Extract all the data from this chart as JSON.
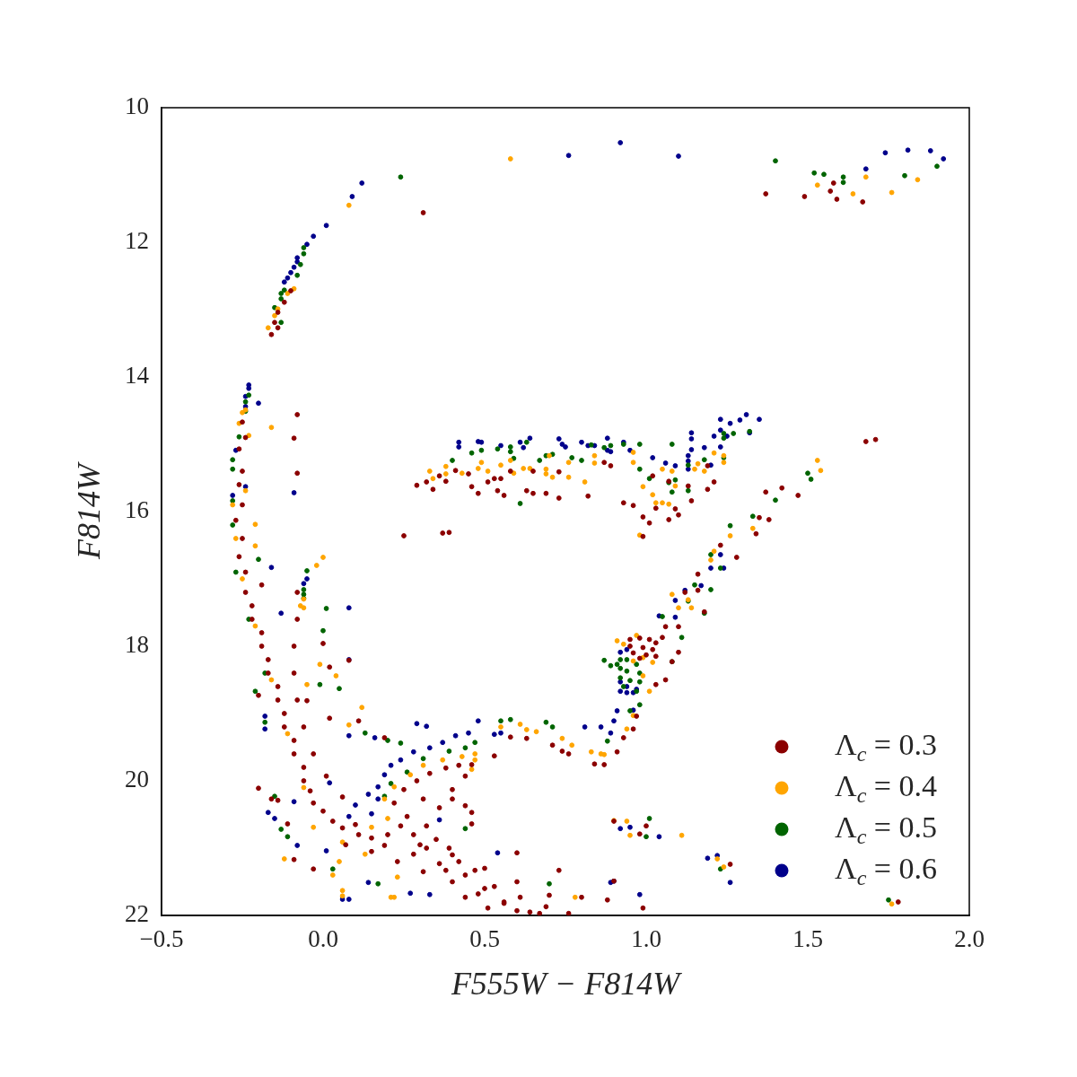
{
  "chart_data": {
    "type": "scatter",
    "xlabel": "F555W − F814W",
    "ylabel": "F814W",
    "xlim": [
      -0.5,
      2.0
    ],
    "ylim": [
      22,
      10
    ],
    "xticks": [
      {
        "value": -0.5,
        "label": "−0.5"
      },
      {
        "value": 0,
        "label": "0.0"
      },
      0.5,
      {
        "value": 1,
        "label": "1.0"
      },
      1.5,
      {
        "value": 2,
        "label": "2.0"
      }
    ],
    "yticks": [
      10,
      12,
      14,
      16,
      18,
      20,
      22
    ],
    "grid": false,
    "legend": "bottom right",
    "marker": "circle",
    "series": [
      {
        "name": "Λ$_{c}$ = 0.3",
        "color": "#8b0000",
        "x": [
          0.31,
          -0.1,
          -0.12,
          -0.14,
          -0.15,
          -0.14,
          -0.16,
          1.37,
          1.49,
          1.57,
          1.58,
          1.59,
          1.67,
          1.68,
          1.71,
          -0.08,
          -0.09,
          -0.08,
          0.29,
          0.32,
          0.34,
          0.36,
          0.38,
          0.41,
          0.45,
          0.46,
          0.48,
          0.51,
          0.53,
          0.55,
          0.54,
          0.56,
          0.58,
          0.63,
          0.65,
          0.65,
          0.69,
          0.73,
          0.73,
          0.87,
          0.89,
          0.82,
          0.93,
          0.96,
          1.02,
          1.07,
          1.13,
          1.19,
          1.21,
          1.19,
          1.37,
          1.42,
          1.47,
          1.14,
          1.09,
          1.03,
          0.25,
          0.37,
          0.39,
          1.16,
          1.23,
          1.28,
          1.34,
          1.38,
          1.35,
          0.99,
          1.01,
          1.07,
          1.1,
          0.99,
          1.06,
          1.1,
          1.12,
          1.16,
          1.18,
          1.05,
          1.1,
          1.08,
          0.95,
          0.98,
          1.01,
          1.03,
          0.95,
          0.99,
          1.02,
          0.96,
          1.0,
          1.03,
          0.98,
          1.03,
          1.06,
          0.97,
          0.96,
          0.93,
          0.91,
          0.87,
          0.84,
          0.76,
          0.9,
          1.0,
          0.98,
          1.26,
          1.78,
          0.8,
          0.9,
          0.99,
          0.88,
          -0.25,
          -0.26,
          -0.26,
          -0.27,
          -0.26,
          -0.24,
          -0.22,
          -0.19,
          -0.17,
          -0.14,
          -0.12,
          -0.09,
          -0.06,
          -0.03,
          0.03,
          0.11,
          0.19,
          0.28,
          0.36,
          0.44,
          0.53,
          0.61,
          0.69,
          0.76,
          -0.24,
          -0.25,
          -0.25,
          -0.25,
          -0.24,
          -0.22,
          -0.19,
          -0.17,
          -0.14,
          -0.12,
          -0.09,
          -0.06,
          -0.04,
          0.0,
          0.06,
          0.15,
          0.07,
          0.15,
          0.23,
          0.31,
          0.4,
          0.48,
          0.56,
          0.64,
          0.1,
          0.2,
          0.3,
          0.4,
          0.5,
          0.6,
          0.7,
          -0.08,
          -0.08,
          -0.09,
          -0.09,
          -0.08,
          -0.06,
          -0.03,
          0.01,
          0.06,
          0.22,
          0.25,
          0.29,
          0.33,
          0.38,
          0.42,
          0.46,
          0.44,
          0.4,
          0.36,
          0.32,
          0.28,
          0.31,
          0.26,
          0.24,
          0.35,
          0.39,
          0.32,
          0.42,
          0.47,
          0.38,
          0.5,
          0.56,
          0.44,
          0.6,
          0.67,
          0.51,
          -0.2,
          -0.16,
          -0.14,
          -0.11,
          -0.09,
          -0.03,
          0.11,
          0.19,
          0.4,
          0.46,
          0.46,
          -0.19,
          0.02,
          0.08,
          0.0,
          -0.2,
          -0.05,
          0.02,
          0.53,
          0.71,
          0.74,
          0.63,
          0.58,
          0.6,
          0.44,
          0.73
        ],
        "values": [
          11.56,
          12.72,
          12.89,
          13.04,
          13.19,
          13.27,
          13.37,
          11.28,
          11.32,
          11.24,
          11.12,
          11.36,
          11.4,
          14.96,
          14.93,
          14.56,
          14.91,
          15.43,
          15.61,
          15.56,
          15.67,
          15.47,
          15.55,
          15.39,
          15.44,
          15.63,
          15.73,
          15.56,
          15.51,
          15.51,
          15.69,
          15.76,
          15.4,
          15.69,
          15.4,
          15.73,
          15.73,
          15.41,
          15.8,
          15.27,
          15.32,
          15.77,
          15.87,
          15.91,
          15.47,
          15.55,
          15.62,
          15.67,
          15.56,
          15.32,
          15.71,
          15.65,
          15.76,
          15.84,
          15.96,
          15.95,
          16.36,
          16.32,
          16.31,
          16.93,
          16.5,
          16.68,
          16.33,
          16.12,
          16.09,
          16.08,
          16.17,
          16.12,
          16.05,
          16.37,
          17.71,
          17.71,
          17.2,
          17.17,
          17.49,
          17.87,
          18.09,
          18.23,
          17.9,
          17.88,
          17.9,
          17.95,
          18.0,
          18.02,
          18.05,
          18.1,
          18.13,
          18.15,
          18.18,
          18.57,
          18.5,
          19.04,
          19.23,
          19.36,
          19.57,
          19.76,
          19.75,
          19.6,
          20.6,
          20.67,
          20.79,
          21.24,
          21.8,
          21.73,
          21.49,
          21.89,
          21.77,
          14.67,
          15.07,
          15.6,
          16.13,
          16.67,
          17.2,
          17.6,
          18.0,
          18.4,
          18.8,
          19.2,
          19.6,
          20.0,
          20.33,
          20.6,
          20.8,
          20.96,
          21.09,
          21.23,
          21.4,
          21.57,
          21.73,
          21.87,
          21.97,
          14.9,
          15.4,
          15.9,
          16.4,
          16.9,
          17.4,
          17.8,
          18.2,
          18.6,
          19.0,
          19.4,
          19.8,
          20.15,
          20.45,
          20.7,
          20.85,
          20.95,
          21.05,
          21.2,
          21.35,
          21.5,
          21.68,
          21.82,
          21.95,
          20.65,
          20.8,
          20.95,
          21.1,
          21.3,
          21.5,
          21.7,
          17.2,
          17.6,
          18.0,
          18.4,
          18.8,
          19.2,
          19.6,
          19.93,
          20.24,
          20.33,
          20.13,
          20.0,
          19.89,
          19.81,
          19.77,
          19.76,
          19.93,
          20.13,
          20.4,
          20.67,
          20.8,
          20.27,
          20.53,
          20.67,
          20.87,
          21.0,
          21.0,
          21.2,
          21.33,
          21.33,
          21.6,
          21.8,
          21.73,
          21.93,
          21.97,
          21.89,
          20.11,
          20.27,
          20.29,
          20.64,
          21.17,
          21.31,
          19.11,
          19.36,
          20.27,
          20.47,
          20.64,
          17.09,
          18.31,
          18.21,
          17.96,
          18.73,
          18.81,
          19.07,
          19.63,
          19.47,
          19.56,
          19.37,
          19.35,
          21.07,
          20.37,
          21.33
        ]
      },
      {
        "name": "Λ$_{c}$ = 0.4",
        "color": "#ffa500",
        "x": [
          0.08,
          -0.09,
          -0.11,
          -0.14,
          -0.15,
          -0.17,
          0.58,
          1.53,
          1.68,
          1.64,
          1.76,
          1.84,
          -0.24,
          -0.26,
          -0.23,
          -0.16,
          -0.24,
          -0.25,
          0.33,
          0.34,
          0.38,
          0.38,
          0.43,
          0.48,
          0.49,
          0.51,
          0.55,
          0.58,
          0.59,
          0.62,
          0.64,
          0.69,
          0.69,
          0.71,
          0.7,
          0.76,
          0.76,
          0.81,
          0.84,
          0.84,
          0.96,
          0.96,
          0.99,
          1.02,
          1.03,
          1.05,
          1.07,
          1.05,
          1.08,
          1.09,
          1.16,
          1.15,
          1.18,
          1.21,
          1.24,
          1.24,
          1.53,
          1.54,
          0.98,
          1.26,
          1.33,
          1.2,
          1.21,
          1.08,
          1.13,
          1.1,
          1.14,
          0.93,
          0.91,
          0.97,
          0.99,
          1.01,
          0.99,
          0.96,
          0.94,
          0.86,
          0.87,
          0.83,
          0.77,
          0.9,
          0.94,
          0.95,
          1.11,
          1.24,
          1.22,
          1.76,
          0.96,
          1.02,
          0.0,
          -0.02,
          -0.21,
          -0.21,
          -0.06,
          0.04,
          0.12,
          0.08,
          -0.01,
          -0.05,
          -0.12,
          0.06,
          0.03,
          0.21,
          0.55,
          0.61,
          0.63,
          0.66,
          0.74,
          0.19,
          0.22,
          0.27,
          0.31,
          0.37,
          0.43,
          0.47,
          0.2,
          0.15,
          0.47,
          0.46,
          -0.03,
          0.06,
          0.13,
          0.05,
          0.06,
          0.23,
          0.22,
          0.78,
          -0.28,
          -0.27,
          -0.25,
          -0.21,
          -0.16,
          -0.11,
          -0.06,
          -0.06,
          -0.07
        ],
        "values": [
          11.45,
          12.69,
          12.76,
          12.99,
          13.09,
          13.27,
          10.76,
          11.15,
          11.03,
          11.28,
          11.26,
          11.07,
          14.49,
          14.69,
          14.87,
          14.75,
          15.69,
          14.53,
          15.4,
          15.51,
          15.33,
          15.44,
          15.43,
          15.36,
          15.27,
          15.4,
          15.31,
          15.24,
          15.43,
          15.36,
          15.36,
          15.37,
          15.44,
          15.49,
          15.17,
          15.27,
          15.49,
          15.56,
          15.17,
          15.28,
          15.12,
          15.27,
          15.63,
          15.75,
          15.87,
          15.87,
          15.89,
          15.37,
          15.4,
          15.62,
          15.29,
          15.37,
          15.4,
          15.13,
          15.17,
          15.27,
          15.24,
          15.39,
          16.35,
          16.36,
          16.25,
          16.72,
          16.59,
          17.23,
          17.31,
          17.43,
          17.43,
          17.97,
          17.92,
          17.84,
          18.17,
          18.67,
          18.44,
          19.03,
          19.23,
          19.6,
          19.61,
          19.57,
          19.47,
          20.59,
          20.6,
          20.81,
          20.81,
          21.28,
          21.16,
          21.83,
          18.22,
          18.24,
          16.68,
          16.8,
          16.19,
          16.51,
          17.43,
          18.44,
          18.91,
          19.17,
          18.27,
          18.57,
          21.16,
          21.71,
          21.4,
          21.73,
          19.2,
          19.16,
          19.24,
          19.27,
          19.37,
          20.27,
          20.09,
          19.91,
          19.77,
          19.69,
          19.64,
          19.6,
          20.56,
          20.69,
          19.69,
          19.83,
          20.69,
          20.91,
          21.09,
          21.2,
          21.63,
          21.43,
          21.73,
          21.73,
          15.9,
          16.4,
          17.0,
          17.7,
          18.5,
          19.3,
          20.1,
          17.3,
          17.4
        ]
      },
      {
        "name": "Λ$_{c}$ = 0.5",
        "color": "#006400",
        "x": [
          0.24,
          -0.06,
          -0.06,
          -0.07,
          -0.08,
          -0.12,
          -0.13,
          -0.13,
          -0.15,
          -0.13,
          1.4,
          1.52,
          1.55,
          1.61,
          1.61,
          1.8,
          1.9,
          -0.23,
          -0.24,
          -0.24,
          -0.26,
          -0.28,
          -0.28,
          -0.28,
          0.4,
          0.46,
          0.49,
          0.54,
          0.58,
          0.58,
          0.59,
          0.61,
          0.63,
          0.67,
          0.69,
          0.71,
          0.77,
          0.8,
          0.83,
          0.87,
          0.89,
          0.93,
          0.98,
          0.98,
          1.01,
          1.08,
          1.07,
          1.08,
          1.09,
          1.13,
          1.13,
          1.18,
          1.24,
          1.24,
          1.24,
          1.27,
          1.32,
          1.4,
          1.5,
          1.51,
          1.26,
          1.33,
          1.2,
          1.23,
          1.15,
          1.2,
          1.13,
          1.18,
          1.05,
          1.11,
          1.08,
          0.87,
          0.89,
          0.92,
          0.94,
          0.97,
          0.92,
          0.94,
          0.98,
          0.92,
          0.95,
          0.98,
          0.93,
          0.97,
          0.91,
          0.95,
          0.98,
          0.88,
          1.01,
          1.0,
          1.23,
          1.75,
          0.21,
          0.26,
          0.31,
          0.39,
          0.44,
          0.47,
          0.19,
          -0.06,
          -0.06,
          -0.06,
          -0.05,
          -0.2,
          0.01,
          0.0,
          -0.01,
          0.05,
          -0.21,
          -0.18,
          0.2,
          0.24,
          0.13,
          -0.15,
          -0.13,
          -0.11,
          0.03,
          0.17,
          0.58,
          0.69,
          0.71,
          0.55,
          0.44,
          0.7,
          -0.28,
          -0.27,
          -0.23,
          -0.18
        ],
        "values": [
          11.03,
          12.08,
          12.17,
          12.33,
          12.49,
          12.71,
          12.76,
          12.84,
          12.97,
          13.19,
          10.79,
          10.97,
          10.99,
          11.03,
          11.11,
          11.01,
          10.87,
          14.27,
          14.37,
          14.51,
          14.89,
          15.23,
          15.37,
          15.84,
          15.24,
          15.13,
          15.09,
          15.07,
          15.04,
          15.11,
          15.21,
          15.88,
          14.97,
          15.24,
          15.17,
          15.15,
          15.2,
          15.24,
          15.01,
          15.05,
          15.02,
          15.0,
          15.0,
          15.37,
          15.51,
          15.0,
          15.57,
          15.71,
          15.53,
          15.31,
          15.69,
          15.23,
          14.84,
          14.91,
          15.2,
          14.84,
          14.81,
          15.83,
          15.43,
          15.52,
          16.21,
          16.07,
          16.64,
          16.84,
          17.09,
          17.16,
          17.33,
          17.51,
          17.56,
          17.87,
          18.23,
          18.21,
          18.29,
          18.2,
          18.2,
          18.27,
          18.33,
          18.37,
          18.4,
          18.47,
          18.51,
          18.53,
          18.6,
          18.67,
          18.27,
          18.96,
          18.87,
          19.41,
          20.56,
          20.83,
          21.31,
          21.77,
          20.04,
          19.87,
          19.67,
          19.56,
          19.51,
          19.43,
          20.23,
          17.23,
          17.29,
          17.16,
          16.88,
          16.71,
          17.44,
          17.77,
          18.57,
          18.63,
          18.67,
          19.13,
          19.4,
          19.44,
          19.29,
          20.23,
          20.72,
          20.83,
          21.31,
          21.53,
          19.09,
          19.13,
          19.2,
          19.11,
          20.71,
          21.53,
          16.2,
          16.9,
          17.6,
          18.4
        ]
      },
      {
        "name": "Λ$_{c}$ = 0.6",
        "color": "#00008b",
        "x": [
          0.12,
          0.09,
          0.01,
          -0.03,
          -0.05,
          -0.08,
          -0.08,
          -0.09,
          -0.1,
          -0.11,
          -0.12,
          0.76,
          0.92,
          1.1,
          1.68,
          1.74,
          1.81,
          1.88,
          1.92,
          -0.23,
          -0.23,
          -0.24,
          -0.24,
          -0.2,
          -0.27,
          -0.28,
          -0.24,
          -0.09,
          0.42,
          0.42,
          0.48,
          0.49,
          0.55,
          0.61,
          0.62,
          0.64,
          0.73,
          0.74,
          0.75,
          0.8,
          0.82,
          0.84,
          0.88,
          0.88,
          0.89,
          0.93,
          0.95,
          1.02,
          1.06,
          1.09,
          1.13,
          1.13,
          1.13,
          1.14,
          1.14,
          1.14,
          1.18,
          1.2,
          1.21,
          1.23,
          1.23,
          1.23,
          1.25,
          1.26,
          1.29,
          1.31,
          1.32,
          1.35,
          1.2,
          1.24,
          1.23,
          1.04,
          1.09,
          1.12,
          1.17,
          1.09,
          0.92,
          0.94,
          0.92,
          0.94,
          0.97,
          0.92,
          0.94,
          0.96,
          0.91,
          0.9,
          0.96,
          0.89,
          0.81,
          0.86,
          0.95,
          0.92,
          1.04,
          1.19,
          1.22,
          1.26,
          0.89,
          0.9,
          0.98,
          -0.05,
          -0.06,
          0.08,
          -0.16,
          -0.13,
          0.08,
          0.08,
          -0.18,
          -0.18,
          -0.09,
          -0.17,
          -0.15,
          -0.08,
          0.01,
          0.06,
          0.14,
          0.16,
          0.14,
          0.02,
          0.54,
          0.36,
          0.19,
          0.21,
          0.24,
          0.28,
          0.33,
          0.37,
          0.41,
          0.45,
          0.48,
          0.17,
          0.17,
          0.53,
          0.55,
          0.29,
          0.32,
          0.08,
          0.1,
          0.15,
          0.27,
          0.33,
          0.08
        ],
        "values": [
          11.12,
          11.32,
          11.75,
          11.91,
          12.03,
          12.23,
          12.29,
          12.37,
          12.45,
          12.53,
          12.59,
          10.71,
          10.52,
          10.72,
          10.91,
          10.67,
          10.63,
          10.64,
          10.76,
          14.12,
          14.17,
          14.29,
          14.44,
          14.39,
          15.09,
          15.76,
          15.63,
          15.72,
          14.97,
          15.04,
          14.96,
          14.97,
          15.02,
          14.97,
          15.05,
          14.91,
          14.92,
          15.0,
          15.04,
          14.97,
          15.02,
          15.02,
          14.91,
          15.09,
          15.11,
          14.97,
          15.09,
          15.2,
          15.28,
          15.32,
          15.25,
          15.37,
          15.17,
          14.83,
          14.92,
          15.08,
          15.05,
          15.31,
          14.88,
          14.63,
          14.79,
          15.04,
          14.88,
          14.69,
          14.64,
          14.56,
          14.83,
          14.63,
          16.84,
          16.84,
          16.64,
          17.55,
          17.32,
          17.17,
          17.1,
          17.57,
          18.09,
          18.05,
          18.53,
          18.6,
          18.64,
          18.67,
          18.69,
          18.69,
          18.96,
          19.11,
          18.95,
          19.29,
          19.2,
          19.2,
          20.69,
          20.71,
          20.83,
          21.15,
          21.11,
          21.51,
          21.51,
          21.49,
          21.69,
          17.0,
          17.07,
          17.43,
          16.83,
          17.51,
          18.2,
          19.33,
          19.04,
          19.23,
          20.31,
          20.47,
          20.56,
          20.96,
          21.04,
          21.76,
          21.51,
          19.36,
          20.2,
          20.03,
          21.07,
          20.58,
          19.91,
          19.77,
          19.69,
          19.57,
          19.51,
          19.43,
          19.33,
          19.29,
          19.11,
          20.09,
          20.27,
          19.31,
          19.29,
          19.15,
          19.19,
          20.53,
          20.36,
          20.49,
          21.67,
          21.69,
          21.76
        ]
      }
    ]
  }
}
